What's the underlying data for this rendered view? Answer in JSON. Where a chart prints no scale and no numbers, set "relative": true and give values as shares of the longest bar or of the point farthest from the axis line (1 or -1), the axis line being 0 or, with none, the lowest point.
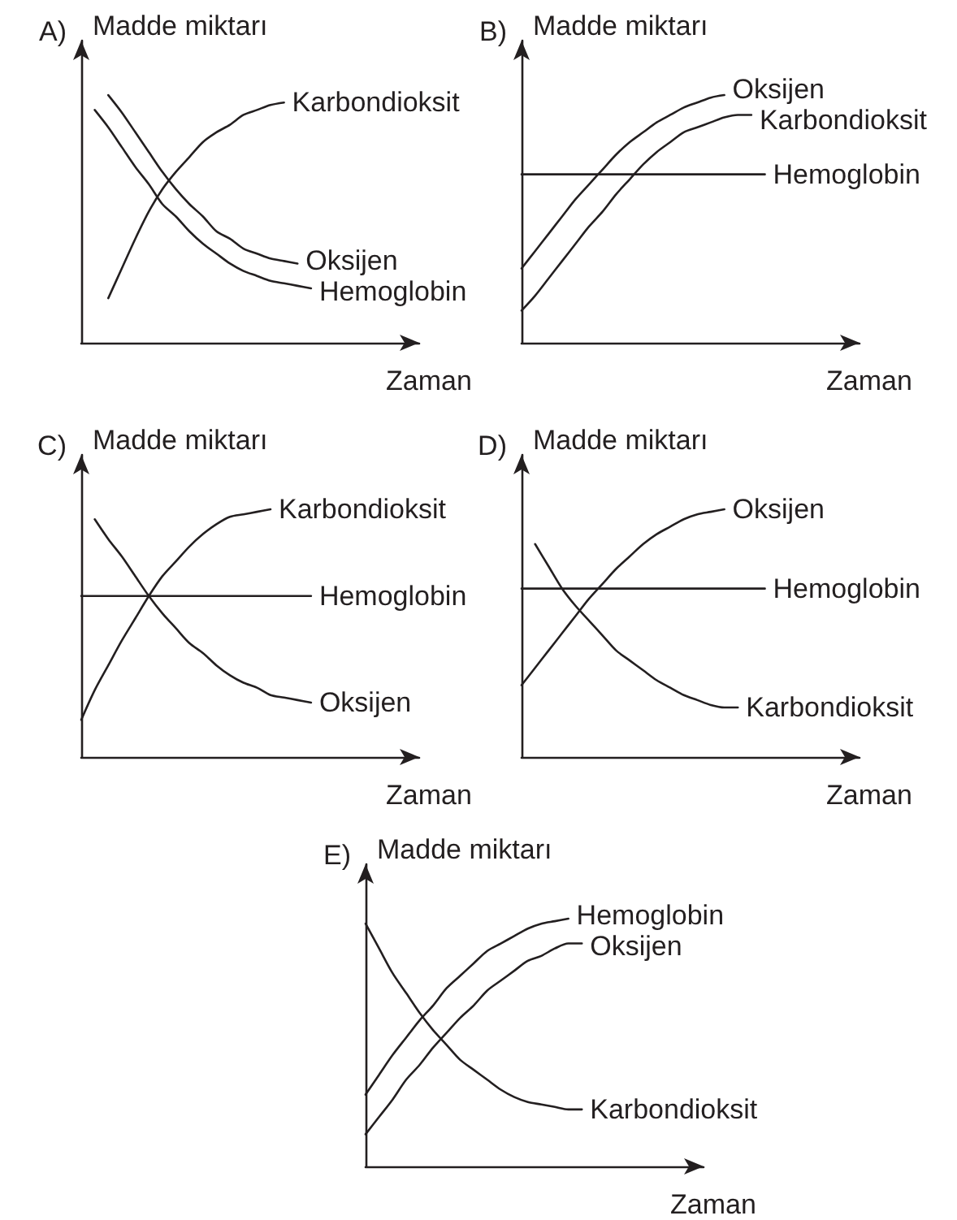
{
  "chart_data": [
    {
      "type": "line",
      "title": "A)",
      "xlabel": "Zaman",
      "ylabel": "Madde miktarı",
      "relative": true,
      "categories": [
        null,
        null,
        null,
        null,
        null,
        null,
        null,
        null,
        null,
        null,
        null,
        null,
        null,
        null,
        null,
        null,
        null,
        null,
        null,
        null,
        null,
        null,
        null,
        null,
        null,
        null
      ],
      "series": [
        {
          "name": "Karbondioksit",
          "color": "#231f20",
          "values": [
            null,
            null,
            0.18,
            0.3,
            0.42,
            0.53,
            0.62,
            0.69,
            0.75,
            0.81,
            0.85,
            0.88,
            0.92,
            0.94,
            0.96,
            0.97,
            null,
            null,
            null,
            null,
            null,
            null,
            null,
            null,
            null,
            null
          ]
        },
        {
          "name": "Oksijen",
          "color": "#231f20",
          "values": [
            null,
            null,
            1.0,
            0.93,
            0.85,
            0.77,
            0.69,
            0.62,
            0.56,
            0.51,
            0.45,
            0.42,
            0.38,
            0.36,
            0.34,
            0.33,
            0.32,
            null,
            null,
            null,
            null,
            null,
            null,
            null,
            null,
            null
          ]
        },
        {
          "name": "Hemoglobin",
          "color": "#231f20",
          "values": [
            null,
            0.94,
            0.87,
            0.79,
            0.71,
            0.64,
            0.56,
            0.51,
            0.45,
            0.4,
            0.36,
            0.32,
            0.29,
            0.27,
            0.25,
            0.24,
            0.23,
            0.22,
            null,
            null,
            null,
            null,
            null,
            null,
            null,
            null
          ]
        }
      ]
    },
    {
      "type": "line",
      "title": "B)",
      "xlabel": "Zaman",
      "ylabel": "Madde miktarı",
      "relative": true,
      "categories": [
        null,
        null,
        null,
        null,
        null,
        null,
        null,
        null,
        null,
        null,
        null,
        null,
        null,
        null,
        null,
        null,
        null,
        null,
        null,
        null,
        null,
        null,
        null,
        null,
        null,
        null
      ],
      "series": [
        {
          "name": "Oksijen",
          "color": "#231f20",
          "values": [
            0.3,
            0.37,
            0.44,
            0.51,
            0.58,
            0.64,
            0.7,
            0.76,
            0.81,
            0.85,
            0.89,
            0.92,
            0.95,
            0.97,
            0.99,
            1.0,
            null,
            null,
            null,
            null,
            null,
            null,
            null,
            null,
            null,
            null
          ]
        },
        {
          "name": "Karbondioksit",
          "color": "#231f20",
          "values": [
            0.13,
            0.19,
            0.26,
            0.33,
            0.4,
            0.47,
            0.53,
            0.6,
            0.66,
            0.72,
            0.77,
            0.81,
            0.85,
            0.87,
            0.89,
            0.91,
            0.92,
            0.92,
            null,
            null,
            null,
            null,
            null,
            null,
            null,
            null
          ]
        },
        {
          "name": "Hemoglobin",
          "color": "#231f20",
          "values": [
            0.68,
            0.68,
            0.68,
            0.68,
            0.68,
            0.68,
            0.68,
            0.68,
            0.68,
            0.68,
            0.68,
            0.68,
            0.68,
            0.68,
            0.68,
            0.68,
            0.68,
            0.68,
            0.68,
            null,
            null,
            null,
            null,
            null,
            null,
            null
          ]
        }
      ]
    },
    {
      "type": "line",
      "title": "C)",
      "xlabel": "Zaman",
      "ylabel": "Madde miktarı",
      "relative": true,
      "categories": [
        null,
        null,
        null,
        null,
        null,
        null,
        null,
        null,
        null,
        null,
        null,
        null,
        null,
        null,
        null,
        null,
        null,
        null,
        null,
        null,
        null,
        null,
        null,
        null,
        null,
        null
      ],
      "series": [
        {
          "name": "Karbondioksit",
          "color": "#231f20",
          "values": [
            0.15,
            0.27,
            0.37,
            0.47,
            0.56,
            0.65,
            0.73,
            0.79,
            0.85,
            0.9,
            0.94,
            0.97,
            0.98,
            0.99,
            1.0,
            null,
            null,
            null,
            null,
            null,
            null,
            null,
            null,
            null,
            null,
            null
          ]
        },
        {
          "name": "Hemoglobin",
          "color": "#231f20",
          "values": [
            0.65,
            0.65,
            0.65,
            0.65,
            0.65,
            0.65,
            0.65,
            0.65,
            0.65,
            0.65,
            0.65,
            0.65,
            0.65,
            0.65,
            0.65,
            0.65,
            0.65,
            0.65,
            null,
            null,
            null,
            null,
            null,
            null,
            null,
            null
          ]
        },
        {
          "name": "Oksijen",
          "color": "#231f20",
          "values": [
            null,
            0.96,
            0.88,
            0.81,
            0.73,
            0.65,
            0.58,
            0.52,
            0.46,
            0.42,
            0.37,
            0.33,
            0.3,
            0.28,
            0.25,
            0.24,
            0.23,
            0.22,
            null,
            null,
            null,
            null,
            null,
            null,
            null,
            null
          ]
        }
      ]
    },
    {
      "type": "line",
      "title": "D)",
      "xlabel": "Zaman",
      "ylabel": "Madde miktarı",
      "relative": true,
      "categories": [
        null,
        null,
        null,
        null,
        null,
        null,
        null,
        null,
        null,
        null,
        null,
        null,
        null,
        null,
        null,
        null,
        null,
        null,
        null,
        null,
        null,
        null,
        null,
        null,
        null,
        null
      ],
      "series": [
        {
          "name": "Oksijen",
          "color": "#231f20",
          "values": [
            0.29,
            0.36,
            0.43,
            0.5,
            0.57,
            0.64,
            0.7,
            0.76,
            0.81,
            0.86,
            0.9,
            0.93,
            0.96,
            0.98,
            0.99,
            1.0,
            null,
            null,
            null,
            null,
            null,
            null,
            null,
            null,
            null,
            null
          ]
        },
        {
          "name": "Hemoglobin",
          "color": "#231f20",
          "values": [
            0.68,
            0.68,
            0.68,
            0.68,
            0.68,
            0.68,
            0.68,
            0.68,
            0.68,
            0.68,
            0.68,
            0.68,
            0.68,
            0.68,
            0.68,
            0.68,
            0.68,
            0.68,
            0.68,
            null,
            null,
            null,
            null,
            null,
            null,
            null
          ]
        },
        {
          "name": "Karbondioksit",
          "color": "#231f20",
          "values": [
            null,
            0.86,
            0.77,
            0.68,
            0.61,
            0.55,
            0.49,
            0.43,
            0.39,
            0.35,
            0.31,
            0.28,
            0.25,
            0.23,
            0.21,
            0.2,
            0.2,
            null,
            null,
            null,
            null,
            null,
            null,
            null,
            null,
            null
          ]
        }
      ]
    },
    {
      "type": "line",
      "title": "E)",
      "xlabel": "Zaman",
      "ylabel": "Madde miktarı",
      "relative": true,
      "categories": [
        null,
        null,
        null,
        null,
        null,
        null,
        null,
        null,
        null,
        null,
        null,
        null,
        null,
        null,
        null,
        null,
        null,
        null,
        null,
        null,
        null,
        null,
        null,
        null,
        null,
        null
      ],
      "series": [
        {
          "name": "Hemoglobin",
          "color": "#231f20",
          "values": [
            0.29,
            0.37,
            0.45,
            0.52,
            0.59,
            0.65,
            0.72,
            0.77,
            0.82,
            0.87,
            0.9,
            0.93,
            0.96,
            0.98,
            0.99,
            1.0,
            null,
            null,
            null,
            null,
            null,
            null,
            null,
            null,
            null,
            null
          ]
        },
        {
          "name": "Oksijen",
          "color": "#231f20",
          "values": [
            0.13,
            0.2,
            0.27,
            0.35,
            0.41,
            0.48,
            0.54,
            0.6,
            0.65,
            0.71,
            0.75,
            0.79,
            0.83,
            0.85,
            0.88,
            0.9,
            0.9,
            null,
            null,
            null,
            null,
            null,
            null,
            null,
            null,
            null
          ]
        },
        {
          "name": "Karbondioksit",
          "color": "#231f20",
          "values": [
            0.98,
            0.88,
            0.78,
            0.7,
            0.62,
            0.55,
            0.49,
            0.43,
            0.39,
            0.35,
            0.31,
            0.28,
            0.26,
            0.25,
            0.24,
            0.23,
            0.23,
            null,
            null,
            null,
            null,
            null,
            null,
            null,
            null,
            null
          ]
        }
      ]
    }
  ]
}
